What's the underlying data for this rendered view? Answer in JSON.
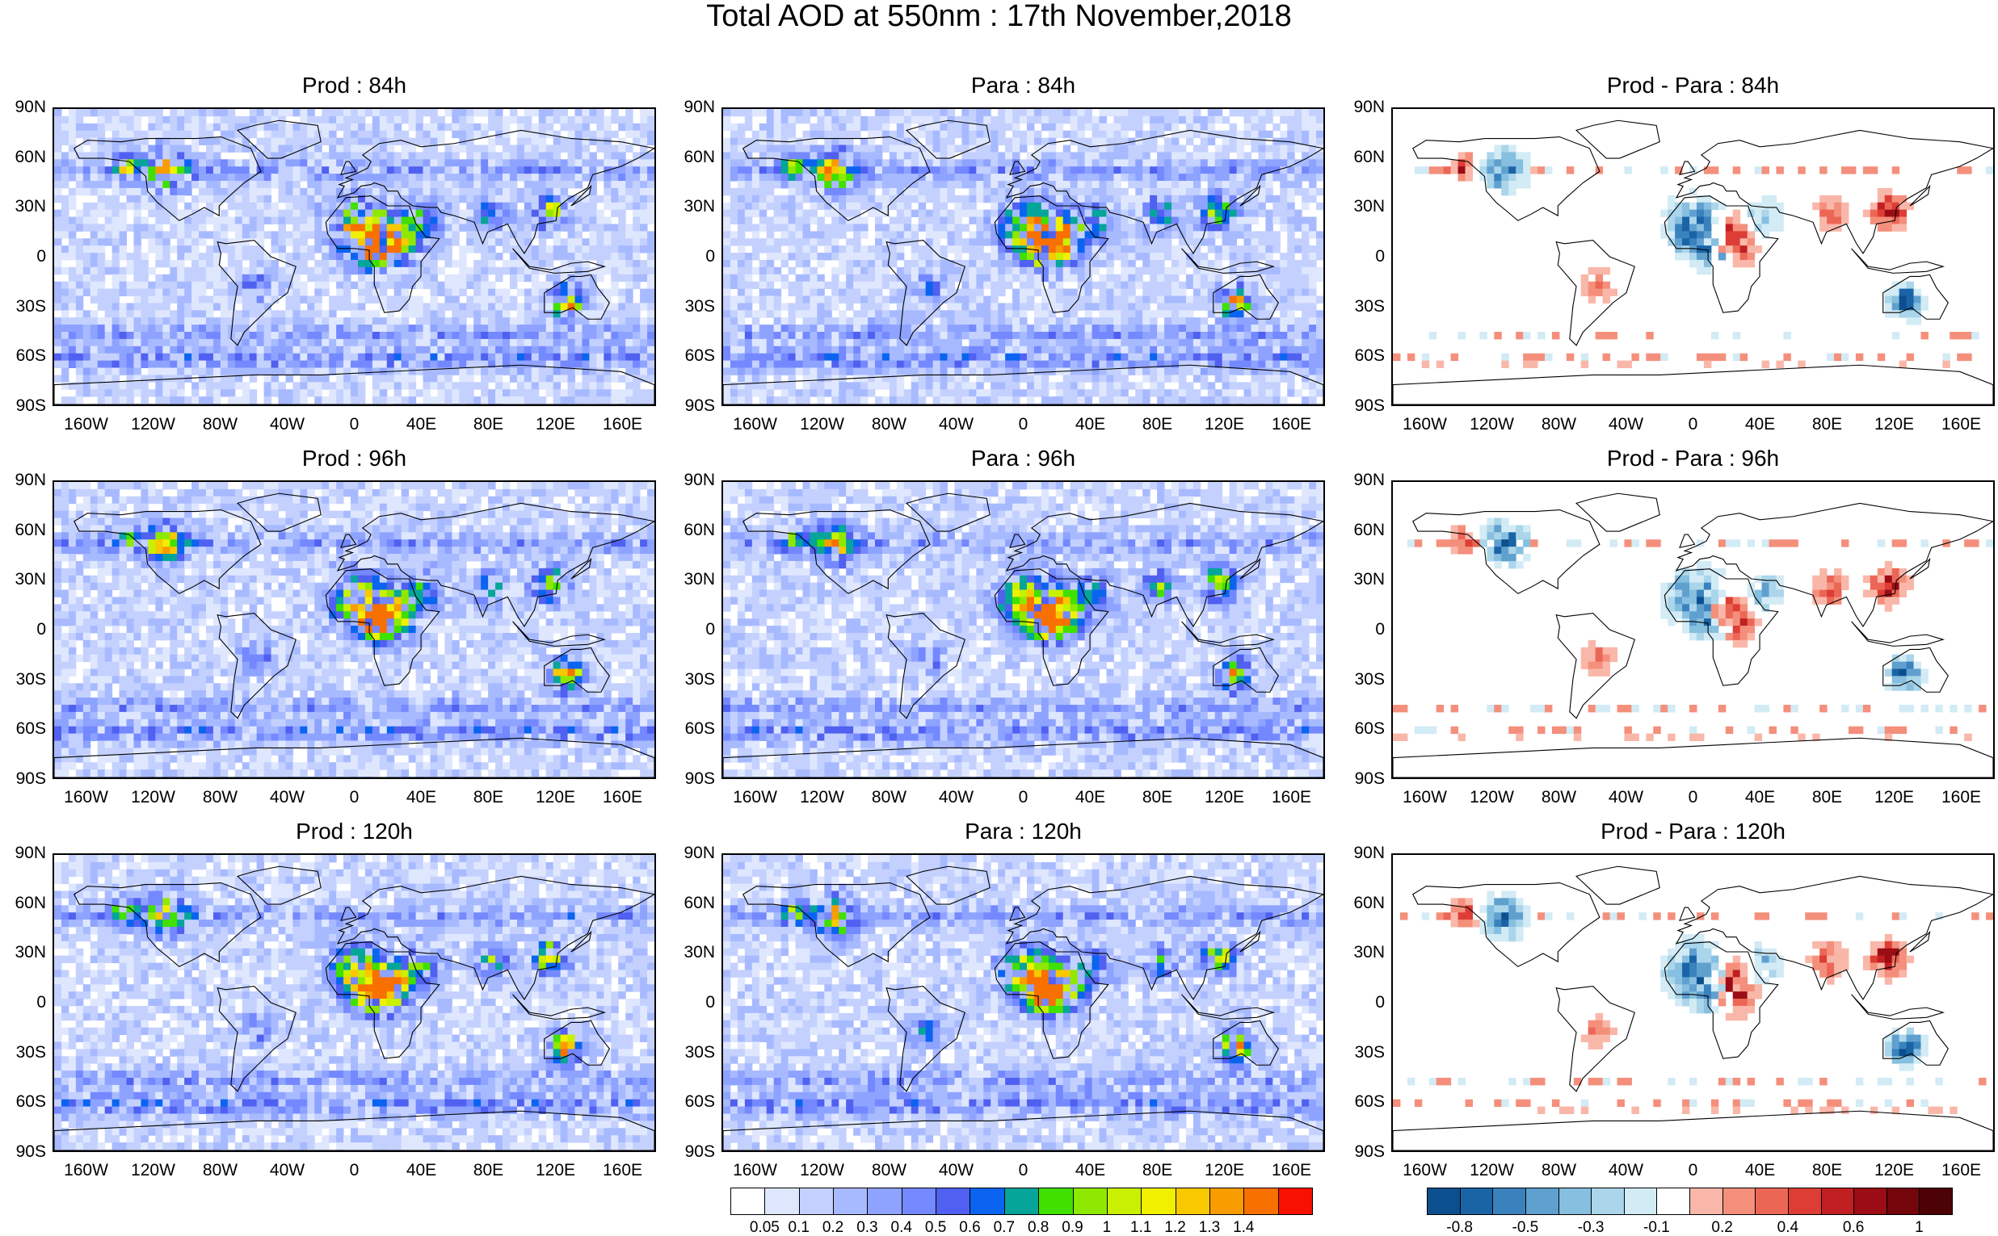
{
  "title": "Total AOD at 550nm : 17th November,2018",
  "panels": [
    {
      "title": "Prod : 84h",
      "kind": "aod",
      "seed": 11
    },
    {
      "title": "Para : 84h",
      "kind": "aod",
      "seed": 23
    },
    {
      "title": "Prod - Para : 84h",
      "kind": "diff",
      "seed": 37
    },
    {
      "title": "Prod : 96h",
      "kind": "aod",
      "seed": 41
    },
    {
      "title": "Para : 96h",
      "kind": "aod",
      "seed": 53
    },
    {
      "title": "Prod - Para : 96h",
      "kind": "diff",
      "seed": 67
    },
    {
      "title": "Prod : 120h",
      "kind": "aod",
      "seed": 71
    },
    {
      "title": "Para : 120h",
      "kind": "aod",
      "seed": 83
    },
    {
      "title": "Prod - Para : 120h",
      "kind": "diff",
      "seed": 97
    }
  ],
  "lat_labels": [
    "90N",
    "60N",
    "30N",
    "0",
    "30S",
    "60S",
    "90S"
  ],
  "lon_labels": [
    "160W",
    "120W",
    "80W",
    "40W",
    "0",
    "40E",
    "80E",
    "120E",
    "160E"
  ],
  "aod_colorbar": {
    "labels": [
      "0.05",
      "0.1",
      "0.2",
      "0.3",
      "0.4",
      "0.5",
      "0.6",
      "0.7",
      "0.8",
      "0.9",
      "1",
      "1.1",
      "1.2",
      "1.3",
      "1.4"
    ],
    "colors": [
      "#ffffff",
      "#dfe7ff",
      "#c4d1ff",
      "#a8baff",
      "#8ea3ff",
      "#7488ff",
      "#5060f0",
      "#0a64f0",
      "#06a59a",
      "#40e000",
      "#8fe800",
      "#c8f000",
      "#f0f000",
      "#f8c800",
      "#f89c00",
      "#f87000",
      "#f81000"
    ]
  },
  "diff_colorbar": {
    "labels": [
      "-0.8",
      "-0.5",
      "-0.3",
      "-0.1",
      "0.2",
      "0.4",
      "0.6",
      "1"
    ],
    "colors": [
      "#0b4f8e",
      "#1a64a6",
      "#3a82bd",
      "#5fa0cf",
      "#86bfdf",
      "#aad5ea",
      "#d2ebf5",
      "#ffffff",
      "#f9b7a9",
      "#f48f7c",
      "#ec6656",
      "#dd3d35",
      "#c21f23",
      "#9b0c14",
      "#74050b",
      "#4d0206"
    ]
  }
}
